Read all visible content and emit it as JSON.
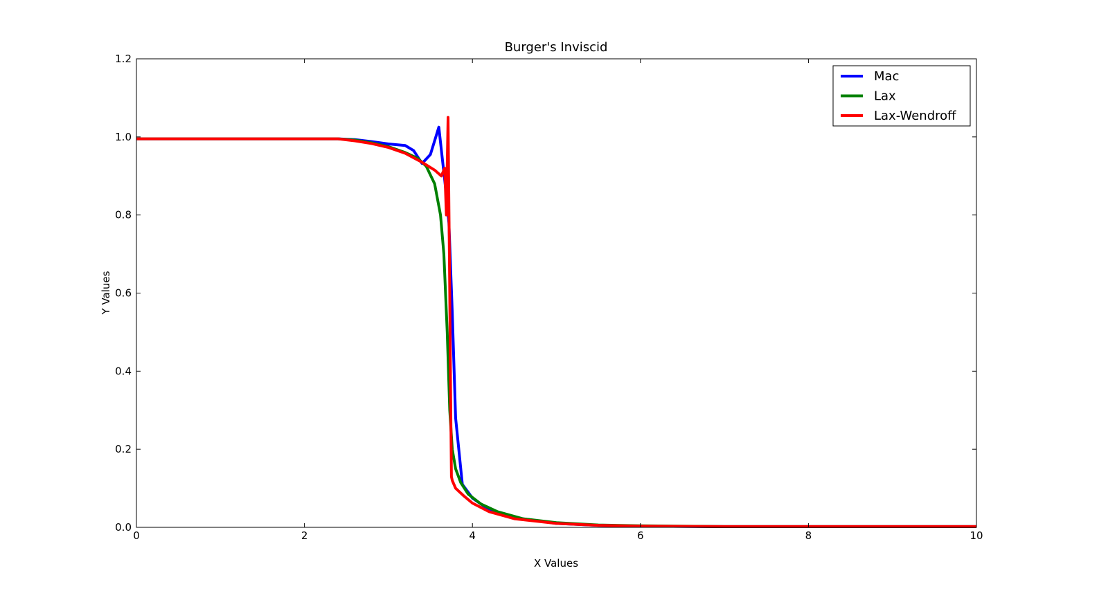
{
  "chart_data": {
    "type": "line",
    "title": "Burger's Inviscid",
    "xlabel": "X Values",
    "ylabel": "Y Values",
    "xlim": [
      0,
      10
    ],
    "ylim": [
      0,
      1.2
    ],
    "xticks": [
      0,
      2,
      4,
      6,
      8,
      10
    ],
    "xtick_labels": [
      "0",
      "2",
      "4",
      "6",
      "8",
      "10"
    ],
    "yticks": [
      0.0,
      0.2,
      0.4,
      0.6,
      0.8,
      1.0,
      1.2
    ],
    "ytick_labels": [
      "0.0",
      "0.2",
      "0.4",
      "0.6",
      "0.8",
      "1.0",
      "1.2"
    ],
    "grid": false,
    "legend_position": "top-right",
    "series": [
      {
        "name": "Mac",
        "color": "#0000ff",
        "x": [
          0,
          1,
          2,
          2.4,
          2.6,
          2.8,
          3.0,
          3.2,
          3.3,
          3.4,
          3.5,
          3.6,
          3.68,
          3.72,
          3.76,
          3.8,
          3.88,
          4.0,
          4.2,
          4.5,
          5.0,
          5.5,
          6.0,
          7.0,
          8.0,
          10.0
        ],
        "y": [
          0.995,
          0.995,
          0.995,
          0.995,
          0.993,
          0.988,
          0.982,
          0.978,
          0.965,
          0.932,
          0.955,
          1.025,
          0.87,
          0.78,
          0.55,
          0.28,
          0.11,
          0.075,
          0.045,
          0.025,
          0.01,
          0.005,
          0.003,
          0.002,
          0.002,
          0.002
        ]
      },
      {
        "name": "Lax",
        "color": "#008000",
        "x": [
          0,
          1,
          2,
          2.4,
          2.6,
          2.8,
          3.0,
          3.2,
          3.35,
          3.45,
          3.55,
          3.62,
          3.66,
          3.7,
          3.73,
          3.76,
          3.8,
          3.86,
          3.95,
          4.1,
          4.3,
          4.6,
          5.0,
          5.5,
          6.0,
          7.0,
          8.0,
          10.0
        ],
        "y": [
          0.995,
          0.995,
          0.995,
          0.995,
          0.992,
          0.985,
          0.975,
          0.96,
          0.945,
          0.925,
          0.88,
          0.8,
          0.7,
          0.5,
          0.3,
          0.2,
          0.15,
          0.115,
          0.085,
          0.06,
          0.04,
          0.022,
          0.012,
          0.006,
          0.004,
          0.002,
          0.002,
          0.002
        ]
      },
      {
        "name": "Lax-Wendroff",
        "color": "#ff0000",
        "x": [
          0,
          1,
          2,
          2.4,
          2.6,
          2.8,
          3.0,
          3.2,
          3.4,
          3.55,
          3.63,
          3.67,
          3.69,
          3.71,
          3.73,
          3.74,
          3.75,
          3.76,
          3.8,
          3.9,
          4.0,
          4.2,
          4.5,
          5.0,
          5.5,
          6.0,
          7.0,
          8.0,
          10.0
        ],
        "y": [
          0.995,
          0.995,
          0.995,
          0.995,
          0.99,
          0.983,
          0.973,
          0.958,
          0.935,
          0.915,
          0.9,
          0.92,
          0.8,
          1.05,
          0.6,
          0.35,
          0.13,
          0.12,
          0.1,
          0.08,
          0.062,
          0.04,
          0.022,
          0.01,
          0.005,
          0.003,
          0.002,
          0.002,
          0.002
        ]
      }
    ]
  }
}
